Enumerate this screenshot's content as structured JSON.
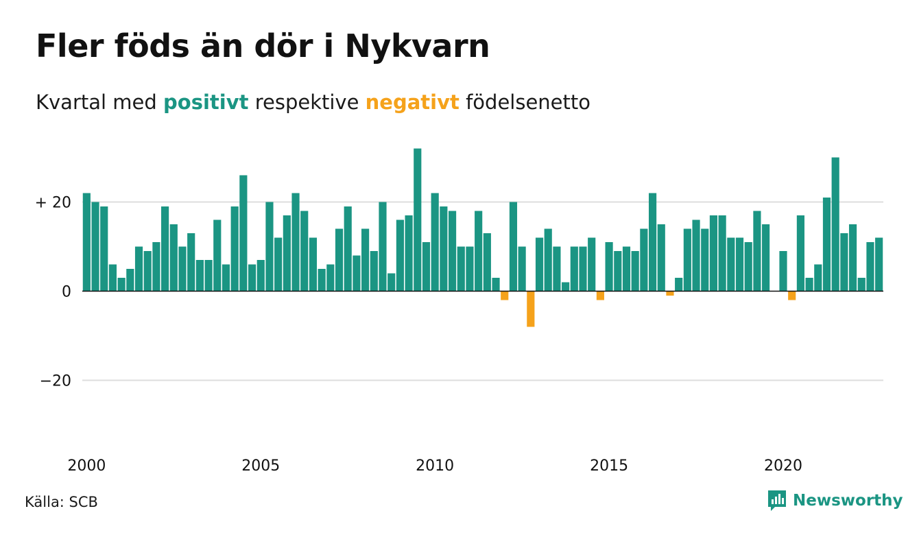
{
  "header": {
    "title": "Fler föds än dör i Nykvarn",
    "subtitle_pre": "Kvartal med ",
    "subtitle_pos": "positivt",
    "subtitle_mid": " respektive ",
    "subtitle_neg": "negativt",
    "subtitle_post": " födelsenetto"
  },
  "footer": {
    "source": "Källa: SCB",
    "brand": "Newsworthy",
    "brand_icon": "bar-chart-speech-bubble-icon"
  },
  "colors": {
    "positive": "#1b9583",
    "negative": "#f5a21b",
    "gridline": "#dddddd",
    "baseline": "#111111",
    "text": "#111111"
  },
  "chart_data": {
    "type": "bar",
    "title": "Fler föds än dör i Nykvarn",
    "subtitle": "Kvartal med positivt respektive negativt födelsenetto",
    "xlabel": "",
    "ylabel": "",
    "ylim": [
      -32,
      32
    ],
    "y_ticks": [
      {
        "value": 20,
        "label": "+ 20"
      },
      {
        "value": 0,
        "label": "0"
      },
      {
        "value": -20,
        "label": "−20"
      }
    ],
    "x_ticks": [
      {
        "year": 2000,
        "label": "2000"
      },
      {
        "year": 2005,
        "label": "2005"
      },
      {
        "year": 2010,
        "label": "2010"
      },
      {
        "year": 2015,
        "label": "2015"
      },
      {
        "year": 2020,
        "label": "2020"
      }
    ],
    "start_year": 2000,
    "start_quarter": 1,
    "grid": true,
    "values": [
      22,
      20,
      19,
      6,
      3,
      5,
      10,
      9,
      11,
      19,
      15,
      10,
      13,
      7,
      7,
      16,
      6,
      19,
      26,
      6,
      7,
      20,
      12,
      17,
      22,
      18,
      12,
      5,
      6,
      14,
      19,
      8,
      14,
      9,
      20,
      4,
      16,
      17,
      32,
      11,
      22,
      19,
      18,
      10,
      10,
      18,
      13,
      3,
      -2,
      20,
      10,
      -8,
      12,
      14,
      10,
      2,
      10,
      10,
      12,
      -2,
      11,
      9,
      10,
      9,
      14,
      22,
      15,
      -1,
      3,
      14,
      16,
      14,
      17,
      17,
      12,
      12,
      11,
      18,
      15,
      0,
      9,
      -2,
      17,
      3,
      6,
      21,
      30,
      13,
      15,
      3,
      11,
      12
    ]
  }
}
